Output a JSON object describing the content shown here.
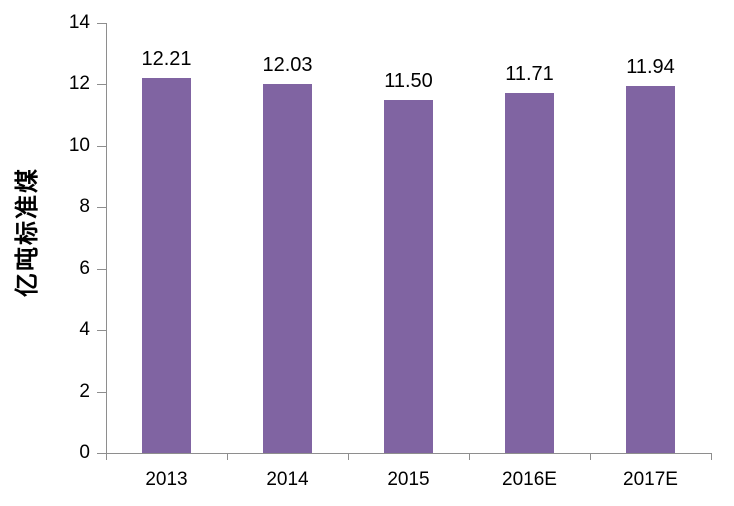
{
  "chart_data": {
    "type": "bar",
    "categories": [
      "2013",
      "2014",
      "2015",
      "2016E",
      "2017E"
    ],
    "values": [
      12.21,
      12.03,
      11.5,
      11.71,
      11.94
    ],
    "data_labels": [
      "12.21",
      "12.03",
      "11.50",
      "11.71",
      "11.94"
    ],
    "ylabel": "亿吨标准煤",
    "ylim": [
      0,
      14
    ],
    "ytick_step": 2,
    "ytick_labels": [
      "0",
      "2",
      "4",
      "6",
      "8",
      "10",
      "12",
      "14"
    ],
    "grid": false,
    "legend": "none",
    "bar_color": "#8064A2",
    "axis_color": "#8E8E8E",
    "text_color": "#000000",
    "background": "#FFFFFF"
  }
}
